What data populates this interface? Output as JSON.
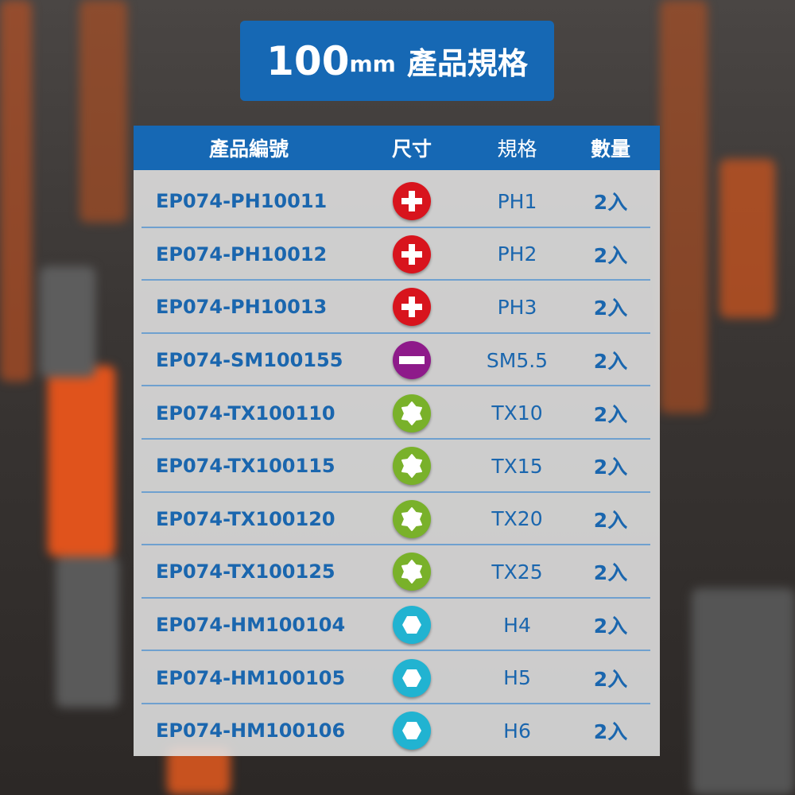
{
  "title": {
    "size": "100",
    "unit": "mm",
    "text": "產品規格"
  },
  "table": {
    "headers": [
      "產品編號",
      "尺寸",
      "規格",
      "數量"
    ],
    "rows": [
      {
        "code": "EP074-PH10011",
        "icon": "phillips-icon",
        "color": "#d8141d",
        "spec": "PH1",
        "qty": "2入"
      },
      {
        "code": "EP074-PH10012",
        "icon": "phillips-icon",
        "color": "#d8141d",
        "spec": "PH2",
        "qty": "2入"
      },
      {
        "code": "EP074-PH10013",
        "icon": "phillips-icon",
        "color": "#d8141d",
        "spec": "PH3",
        "qty": "2入"
      },
      {
        "code": "EP074-SM100155",
        "icon": "slotted-icon",
        "color": "#8e1a8a",
        "spec": "SM5.5",
        "qty": "2入"
      },
      {
        "code": "EP074-TX100110",
        "icon": "torx-icon",
        "color": "#79b12a",
        "spec": "TX10",
        "qty": "2入"
      },
      {
        "code": "EP074-TX100115",
        "icon": "torx-icon",
        "color": "#79b12a",
        "spec": "TX15",
        "qty": "2入"
      },
      {
        "code": "EP074-TX100120",
        "icon": "torx-icon",
        "color": "#79b12a",
        "spec": "TX20",
        "qty": "2入"
      },
      {
        "code": "EP074-TX100125",
        "icon": "torx-icon",
        "color": "#79b12a",
        "spec": "TX25",
        "qty": "2入"
      },
      {
        "code": "EP074-HM100104",
        "icon": "hex-icon",
        "color": "#21b3d1",
        "spec": "H4",
        "qty": "2入"
      },
      {
        "code": "EP074-HM100105",
        "icon": "hex-icon",
        "color": "#21b3d1",
        "spec": "H5",
        "qty": "2入"
      },
      {
        "code": "EP074-HM100106",
        "icon": "hex-icon",
        "color": "#21b3d1",
        "spec": "H6",
        "qty": "2入"
      }
    ]
  },
  "colors": {
    "accent": "#1668b4",
    "text": "#1a66ae"
  }
}
